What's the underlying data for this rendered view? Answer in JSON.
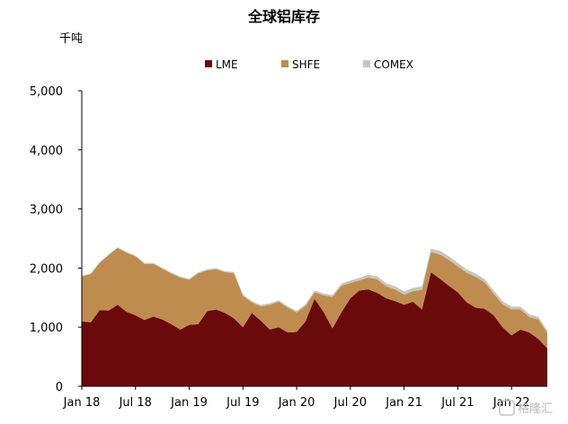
{
  "chart_data": {
    "type": "area",
    "stacked": true,
    "title": "全球铝库存",
    "ylabel": "千吨",
    "xlabel": "",
    "ylim": [
      0,
      5000
    ],
    "y_ticks": [
      "0",
      "1,000",
      "2,000",
      "3,000",
      "4,000",
      "5,000"
    ],
    "y_tick_values": [
      0,
      1000,
      2000,
      3000,
      4000,
      5000
    ],
    "x_tick_labels": [
      "Jan 18",
      "Jul 18",
      "Jan 19",
      "Jul 19",
      "Jan 20",
      "Jul 20",
      "Jan 21",
      "Jul 21",
      "Jan 22"
    ],
    "x_tick_months": [
      0,
      6,
      12,
      18,
      24,
      30,
      36,
      42,
      48
    ],
    "x_range_months": [
      0,
      52
    ],
    "x_unit": "months since Jan 18",
    "grid": false,
    "legend_position": "top",
    "x": [
      0,
      1,
      2,
      3,
      4,
      5,
      6,
      7,
      8,
      9,
      10,
      11,
      12,
      13,
      14,
      15,
      16,
      17,
      18,
      19,
      20,
      21,
      22,
      23,
      24,
      25,
      26,
      27,
      28,
      29,
      30,
      31,
      32,
      33,
      34,
      35,
      36,
      37,
      38,
      39,
      40,
      41,
      42,
      43,
      44,
      45,
      46,
      47,
      48,
      49,
      50,
      51,
      52
    ],
    "series": [
      {
        "name": "LME",
        "color": "#6b0a0a",
        "values": [
          1100,
          1080,
          1290,
          1280,
          1380,
          1260,
          1200,
          1120,
          1180,
          1130,
          1050,
          960,
          1040,
          1050,
          1270,
          1300,
          1240,
          1150,
          1000,
          1240,
          1110,
          960,
          1000,
          910,
          920,
          1100,
          1480,
          1260,
          980,
          1250,
          1490,
          1620,
          1640,
          1580,
          1490,
          1440,
          1380,
          1430,
          1300,
          1930,
          1820,
          1700,
          1590,
          1420,
          1330,
          1310,
          1200,
          1000,
          860,
          960,
          910,
          800,
          640
        ]
      },
      {
        "name": "SHFE",
        "color": "#bf8c50",
        "values": [
          760,
          820,
          800,
          940,
          960,
          1000,
          1000,
          950,
          890,
          860,
          860,
          880,
          760,
          860,
          690,
          680,
          690,
          760,
          530,
          180,
          240,
          420,
          430,
          420,
          330,
          260,
          110,
          280,
          530,
          450,
          260,
          170,
          200,
          230,
          200,
          200,
          170,
          180,
          330,
          340,
          410,
          440,
          440,
          500,
          520,
          450,
          370,
          390,
          440,
          340,
          260,
          330,
          260
        ]
      },
      {
        "name": "COMEX",
        "color": "#c4c7bc",
        "values": [
          10,
          10,
          10,
          10,
          12,
          12,
          12,
          15,
          15,
          15,
          15,
          18,
          18,
          18,
          20,
          20,
          20,
          22,
          22,
          22,
          25,
          25,
          25,
          25,
          28,
          28,
          30,
          30,
          32,
          35,
          40,
          45,
          48,
          50,
          50,
          52,
          55,
          55,
          58,
          60,
          62,
          60,
          58,
          56,
          55,
          52,
          50,
          50,
          48,
          46,
          45,
          44,
          42
        ]
      }
    ]
  },
  "watermark": "格隆汇"
}
